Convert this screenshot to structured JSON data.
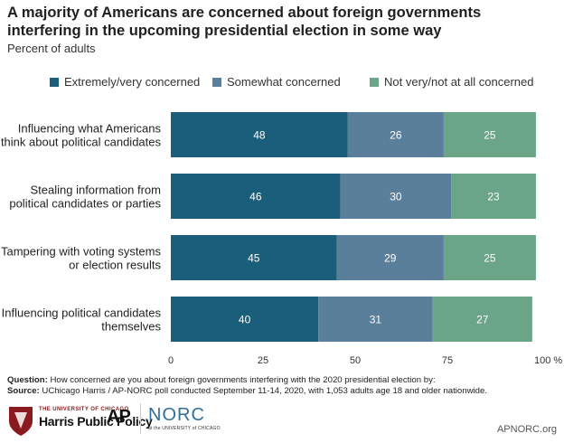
{
  "title": "A majority of Americans are concerned about foreign governments interfering in the upcoming presidential election in some way",
  "subtitle": "Percent of adults",
  "colors": {
    "extreme": "#1b5e7b",
    "somewhat": "#5a7f9b",
    "not": "#6aa587"
  },
  "chart_data": {
    "type": "bar",
    "orientation": "horizontal",
    "stacked": true,
    "categories": [
      "Influencing what Americans think about political candidates",
      "Stealing information from political candidates or parties",
      "Tampering with voting systems or election results",
      "Influencing political candidates themselves"
    ],
    "category_lines": [
      [
        "Influencing what Americans",
        "think about political candidates"
      ],
      [
        "Stealing information from",
        "political candidates or parties"
      ],
      [
        "Tampering with voting systems",
        "or election results"
      ],
      [
        "Influencing political candidates",
        "themselves"
      ]
    ],
    "series": [
      {
        "name": "Extremely/very concerned",
        "color": "#1b5e7b",
        "values": [
          48,
          46,
          45,
          40
        ]
      },
      {
        "name": "Somewhat concerned",
        "color": "#5a7f9b",
        "values": [
          26,
          30,
          29,
          31
        ]
      },
      {
        "name": "Not very/not at all concerned",
        "color": "#6aa587",
        "values": [
          25,
          23,
          25,
          27
        ]
      }
    ],
    "xlim": [
      0,
      100
    ],
    "xticks": [
      "0",
      "25",
      "50",
      "75",
      "100 %"
    ],
    "xtick_values": [
      0,
      25,
      50,
      75,
      100
    ],
    "legend_position": "top",
    "grid": false
  },
  "footer": {
    "question_label": "Question:",
    "question_text": "How concerned are you about foreign governments interfering with the 2020 presidential election by:",
    "source_label": "Source:",
    "source_text": "UChicago Harris / AP-NORC poll conducted September 11-14, 2020, with 1,053 adults age 18 and older nationwide."
  },
  "logos": {
    "uchicago_small": "THE UNIVERSITY OF CHICAGO",
    "uchicago_big": "Harris Public Policy",
    "ap": "AP",
    "norc": "NORC",
    "norc_sub": "at the UNIVERSITY of CHICAGO",
    "site": "APNORC.org"
  }
}
